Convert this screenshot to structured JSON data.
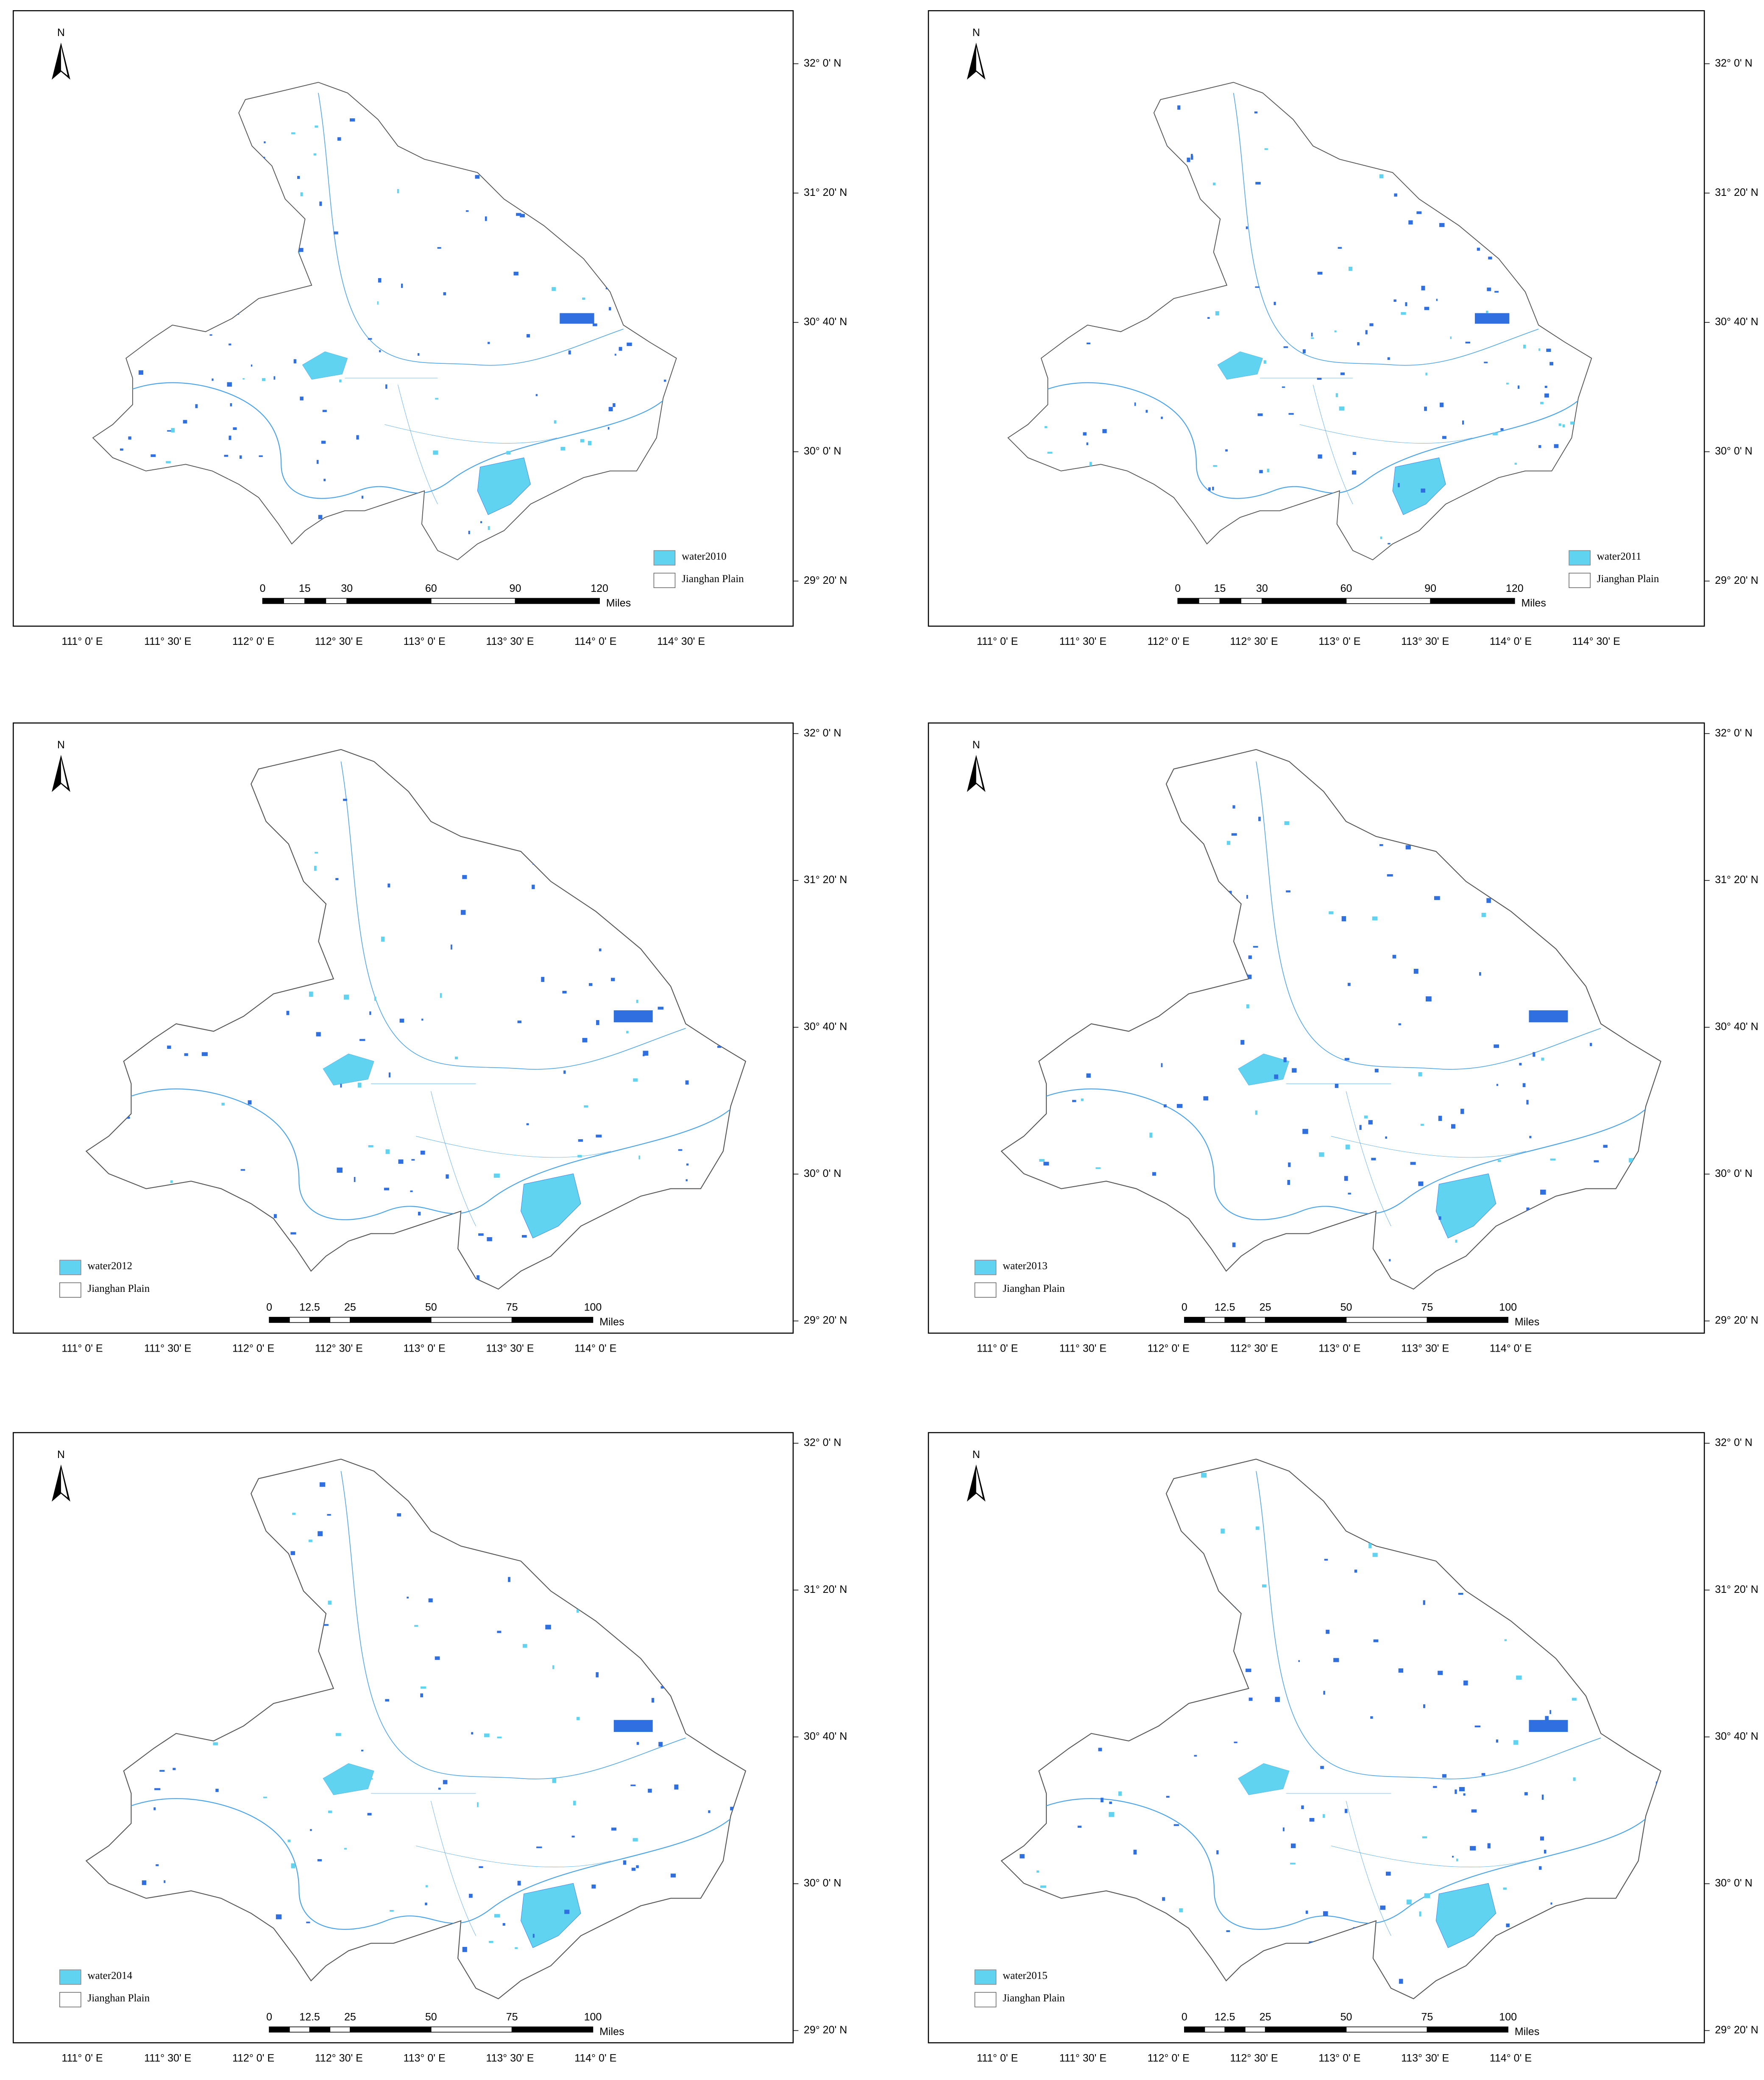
{
  "panels": [
    {
      "north": "N",
      "legend": {
        "water": "water2010",
        "plain": "Jianghan Plain"
      },
      "scale": {
        "labels": [
          "0",
          "15",
          "30",
          "60",
          "90",
          "120"
        ],
        "unit": "Miles"
      },
      "lon_labels": [
        "111° 0' E",
        "111° 30' E",
        "112° 0' E",
        "112° 30' E",
        "113° 0' E",
        "113° 30' E",
        "114° 0' E",
        "114° 30' E"
      ],
      "lat_labels": [
        "32° 0' N",
        "31° 20' N",
        "30° 40' N",
        "30° 0' N",
        "29° 20' N"
      ]
    },
    {
      "north": "N",
      "legend": {
        "water": "water2011",
        "plain": "Jianghan Plain"
      },
      "scale": {
        "labels": [
          "0",
          "15",
          "30",
          "60",
          "90",
          "120"
        ],
        "unit": "Miles"
      },
      "lon_labels": [
        "111° 0' E",
        "111° 30' E",
        "112° 0' E",
        "112° 30' E",
        "113° 0' E",
        "113° 30' E",
        "114° 0' E",
        "114° 30' E"
      ],
      "lat_labels": [
        "32° 0' N",
        "31° 20' N",
        "30° 40' N",
        "30° 0' N",
        "29° 20' N"
      ]
    },
    {
      "north": "N",
      "legend": {
        "water": "water2012",
        "plain": "Jianghan Plain"
      },
      "scale": {
        "labels": [
          "0",
          "12.5",
          "25",
          "50",
          "75",
          "100"
        ],
        "unit": "Miles"
      },
      "lon_labels": [
        "111° 0' E",
        "111° 30' E",
        "112° 0' E",
        "112° 30' E",
        "113° 0' E",
        "113° 30' E",
        "114° 0' E"
      ],
      "lat_labels": [
        "32° 0' N",
        "31° 20' N",
        "30° 40' N",
        "30° 0' N",
        "29° 20' N"
      ]
    },
    {
      "north": "N",
      "legend": {
        "water": "water2013",
        "plain": "Jianghan Plain"
      },
      "scale": {
        "labels": [
          "0",
          "12.5",
          "25",
          "50",
          "75",
          "100"
        ],
        "unit": "Miles"
      },
      "lon_labels": [
        "111° 0' E",
        "111° 30' E",
        "112° 0' E",
        "112° 30' E",
        "113° 0' E",
        "113° 30' E",
        "114° 0' E"
      ],
      "lat_labels": [
        "32° 0' N",
        "31° 20' N",
        "30° 40' N",
        "30° 0' N",
        "29° 20' N"
      ]
    },
    {
      "north": "N",
      "legend": {
        "water": "water2014",
        "plain": "Jianghan Plain"
      },
      "scale": {
        "labels": [
          "0",
          "12.5",
          "25",
          "50",
          "75",
          "100"
        ],
        "unit": "Miles"
      },
      "lon_labels": [
        "111° 0' E",
        "111° 30' E",
        "112° 0' E",
        "112° 30' E",
        "113° 0' E",
        "113° 30' E",
        "114° 0' E"
      ],
      "lat_labels": [
        "32° 0' N",
        "31° 20' N",
        "30° 40' N",
        "30° 0' N",
        "29° 20' N"
      ]
    },
    {
      "north": "N",
      "legend": {
        "water": "water2015",
        "plain": "Jianghan Plain"
      },
      "scale": {
        "labels": [
          "0",
          "12.5",
          "25",
          "50",
          "75",
          "100"
        ],
        "unit": "Miles"
      },
      "lon_labels": [
        "111° 0' E",
        "111° 30' E",
        "112° 0' E",
        "112° 30' E",
        "113° 0' E",
        "113° 30' E",
        "114° 0' E"
      ],
      "lat_labels": [
        "32° 0' N",
        "31° 20' N",
        "30° 40' N",
        "30° 0' N",
        "29° 20' N"
      ]
    }
  ]
}
